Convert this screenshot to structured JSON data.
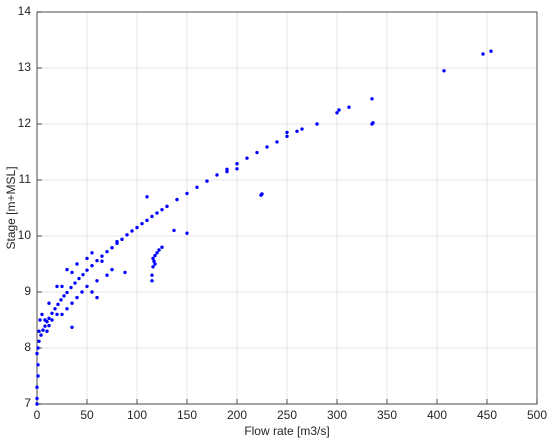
{
  "chart_data": {
    "type": "scatter",
    "xlabel": "Flow rate [m3/s]",
    "ylabel": "Stage [m+MSL]",
    "color": "#0000ff",
    "xlim": [
      0,
      500
    ],
    "ylim": [
      7,
      14
    ],
    "xticks": [
      0,
      50,
      100,
      150,
      200,
      250,
      300,
      350,
      400,
      450,
      500
    ],
    "yticks": [
      7,
      8,
      9,
      10,
      11,
      12,
      13,
      14
    ],
    "grid": true,
    "x": [
      2,
      4,
      6,
      8,
      10,
      12,
      15,
      18,
      21,
      24,
      27,
      30,
      34,
      38,
      42,
      46,
      50,
      55,
      60,
      65,
      70,
      75,
      80,
      85,
      90,
      95,
      100,
      105,
      110,
      115,
      120,
      125,
      130,
      140,
      150,
      160,
      170,
      180,
      190,
      200,
      210,
      220,
      230,
      240,
      250,
      260,
      265,
      0,
      0,
      0,
      1,
      1,
      0,
      1,
      2,
      3,
      5,
      8,
      10,
      12,
      15,
      20,
      25,
      30,
      35,
      40,
      45,
      50,
      55,
      60,
      70,
      75,
      65,
      40,
      35,
      50,
      55,
      30,
      25,
      20,
      12,
      35,
      80,
      60,
      88,
      110,
      115,
      115,
      116,
      117,
      116,
      118,
      120,
      122,
      125,
      118,
      137,
      150,
      190,
      200,
      224,
      225,
      300,
      302,
      312,
      335,
      335,
      336,
      407,
      446,
      454,
      280,
      250
    ],
    "values": [
      8.12,
      8.23,
      8.32,
      8.39,
      8.47,
      8.53,
      8.62,
      8.7,
      8.78,
      8.86,
      8.93,
      8.99,
      9.08,
      9.16,
      9.24,
      9.31,
      9.39,
      9.47,
      9.56,
      9.64,
      9.72,
      9.79,
      9.87,
      9.94,
      10.02,
      10.09,
      10.15,
      10.22,
      10.28,
      10.35,
      10.41,
      10.47,
      10.53,
      10.65,
      10.76,
      10.87,
      10.98,
      11.09,
      11.19,
      11.29,
      11.39,
      11.49,
      11.59,
      11.68,
      11.78,
      11.87,
      11.91,
      7.0,
      7.1,
      7.3,
      7.5,
      7.7,
      7.9,
      8.0,
      8.3,
      8.5,
      8.6,
      8.5,
      8.3,
      8.4,
      8.5,
      8.6,
      8.6,
      8.7,
      8.8,
      8.9,
      9.0,
      9.1,
      9.0,
      9.2,
      9.3,
      9.4,
      9.55,
      9.5,
      9.35,
      9.6,
      9.7,
      9.4,
      9.1,
      9.1,
      8.8,
      8.37,
      9.9,
      8.9,
      9.35,
      10.7,
      9.2,
      9.3,
      9.45,
      9.55,
      9.6,
      9.5,
      9.7,
      9.75,
      9.8,
      9.65,
      10.1,
      10.05,
      11.15,
      11.2,
      10.73,
      10.75,
      12.2,
      12.25,
      12.3,
      12.45,
      12.0,
      12.02,
      12.95,
      13.25,
      13.3,
      12.0,
      11.85
    ]
  }
}
